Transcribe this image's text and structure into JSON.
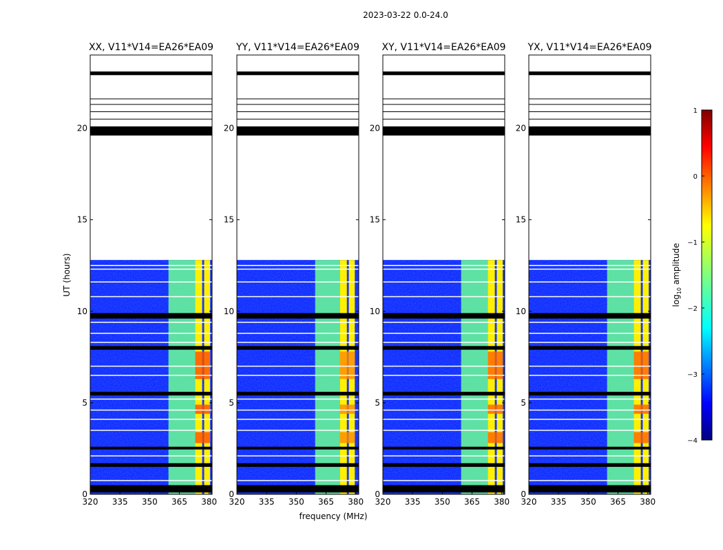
{
  "suptitle": "2023-03-22 0.0-24.0",
  "chart_data": {
    "type": "heatmap",
    "xlabel": "frequency (MHz)",
    "ylabel": "UT (hours)",
    "xlim": [
      320,
      381.5
    ],
    "ylim": [
      0,
      24
    ],
    "xticks": [
      "320",
      "335",
      "350",
      "365",
      "380"
    ],
    "yticks": [
      "0",
      "5",
      "10",
      "15",
      "20"
    ],
    "xtick_values": [
      320,
      335,
      350,
      365,
      380
    ],
    "ytick_values": [
      0,
      5,
      10,
      15,
      20
    ],
    "panels": [
      {
        "title": "XX, V11*V14=EA26*EA09",
        "band_start": 359.5,
        "strong_start": 373,
        "peak_strong": 0.0
      },
      {
        "title": "YY, V11*V14=EA26*EA09",
        "band_start": 359.5,
        "strong_start": 372,
        "peak_strong": -0.3
      },
      {
        "title": "XY, V11*V14=EA26*EA09",
        "band_start": 359.5,
        "strong_start": 373,
        "peak_strong": -0.1
      },
      {
        "title": "YX, V11*V14=EA26*EA09",
        "band_start": 359.5,
        "strong_start": 373,
        "peak_strong": -0.1
      }
    ],
    "data_hours": [
      0,
      12.8
    ],
    "background_log_amplitude": -3.3,
    "weak_band_log_amplitude": -1.6,
    "strong_band_log_amplitude": -0.8,
    "flagged_black_hours": [
      [
        0.1,
        0.5
      ],
      [
        1.5,
        1.7
      ],
      [
        7.9,
        8.1
      ],
      [
        9.6,
        9.9
      ],
      [
        19.6,
        20.1
      ],
      [
        22.9,
        23.1
      ],
      [
        2.45,
        2.6
      ],
      [
        5.4,
        5.6
      ]
    ],
    "flagged_thin_lines": [
      0.75,
      2.1,
      3.5,
      4.1,
      4.6,
      5.2,
      6.5,
      7.0,
      8.3,
      8.8,
      9.4,
      10.8,
      11.6,
      12.3,
      12.5,
      20.5,
      20.9,
      21.3,
      21.6
    ],
    "colorbar": {
      "label": "log",
      "label_sub": "10",
      "label_suffix": " amplitude",
      "min": -4,
      "max": 1,
      "ticks": [
        "1",
        "0",
        "−1",
        "−2",
        "−3",
        "−4"
      ],
      "tick_values": [
        1,
        0,
        -1,
        -2,
        -3,
        -4
      ],
      "cmap": "jet"
    }
  }
}
